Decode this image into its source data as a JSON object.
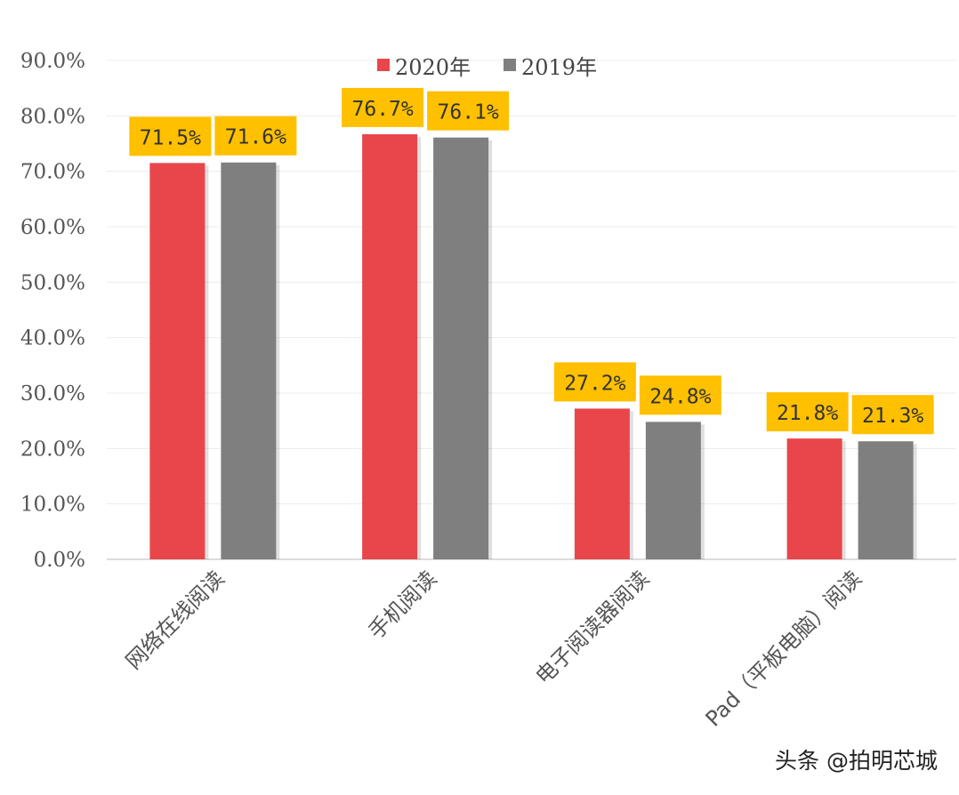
{
  "chart_data": {
    "type": "bar",
    "categories": [
      "网络在线阅读",
      "手机阅读",
      "电子阅读器阅读",
      "Pad（平板电脑）阅读"
    ],
    "series": [
      {
        "name": "2020年",
        "values": [
          71.5,
          76.7,
          27.2,
          21.8
        ],
        "color": "#e8464b"
      },
      {
        "name": "2019年",
        "values": [
          71.6,
          76.1,
          24.8,
          21.3
        ],
        "color": "#7f7f7f"
      }
    ],
    "data_labels": [
      [
        "71.5%",
        "76.7%",
        "27.2%",
        "21.8%"
      ],
      [
        "71.6%",
        "76.1%",
        "24.8%",
        "21.3%"
      ]
    ],
    "label_box_color": "#ffc000",
    "yticks": [
      "0.0%",
      "10.0%",
      "20.0%",
      "30.0%",
      "40.0%",
      "50.0%",
      "60.0%",
      "70.0%",
      "80.0%",
      "90.0%"
    ],
    "ylim": [
      0,
      90
    ],
    "grid": true,
    "legend": "top-center",
    "title": "",
    "xlabel": "",
    "ylabel": ""
  },
  "watermark": "头条 @拍明芯城"
}
